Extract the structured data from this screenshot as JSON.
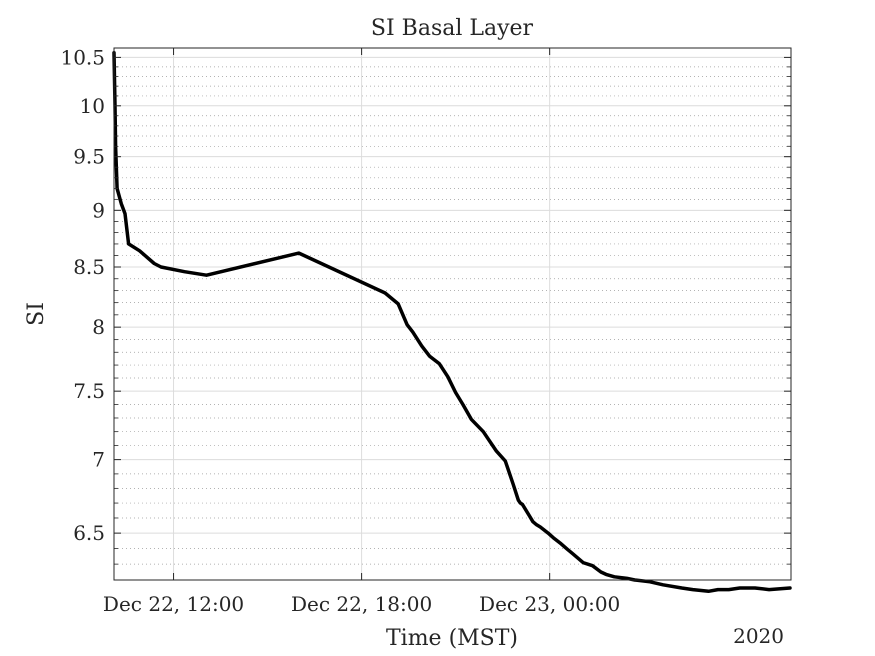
{
  "chart_data": {
    "type": "line",
    "title": "SI Basal Layer",
    "xlabel": "Time (MST)",
    "ylabel": "SI",
    "x_secondary_label": "2020",
    "scale_y": "log",
    "grid": true,
    "minor_grid": true,
    "legend": "none",
    "line_color": "#000000",
    "xlim": [
      "2020-12-22 10:06",
      "2020-12-23 07:42"
    ],
    "ylim": [
      6.2,
      10.6
    ],
    "x_ticks": [
      "2020-12-22 12:00",
      "2020-12-22 18:00",
      "2020-12-23 00:00"
    ],
    "x_tick_labels": [
      "Dec 22, 12:00",
      "Dec 22, 18:00",
      "Dec 23, 00:00"
    ],
    "y_ticks": [
      6.5,
      7,
      7.5,
      8,
      8.5,
      9,
      9.5,
      10,
      10.5
    ],
    "y_tick_labels": [
      "6.5",
      "7",
      "7.5",
      "8",
      "8.5",
      "9",
      "9.5",
      "10",
      "10.5"
    ],
    "series": [
      {
        "x": [
          "2020-12-22 10:06",
          "2020-12-22 10:08",
          "2020-12-22 10:09",
          "2020-12-22 10:12",
          "2020-12-22 10:20",
          "2020-12-22 10:27",
          "2020-12-22 10:34",
          "2020-12-22 10:55",
          "2020-12-22 11:23",
          "2020-12-22 11:36",
          "2020-12-22 12:21",
          "2020-12-22 13:03",
          "2020-12-22 16:00",
          "2020-12-22 18:45",
          "2020-12-22 19:10",
          "2020-12-22 19:27",
          "2020-12-22 19:38",
          "2020-12-22 19:55",
          "2020-12-22 20:10",
          "2020-12-22 20:29",
          "2020-12-22 20:45",
          "2020-12-22 21:00",
          "2020-12-22 21:14",
          "2020-12-22 21:30",
          "2020-12-22 21:53",
          "2020-12-22 22:18",
          "2020-12-22 22:35",
          "2020-12-22 22:50",
          "2020-12-22 23:00",
          "2020-12-22 23:04",
          "2020-12-22 23:08",
          "2020-12-22 23:22",
          "2020-12-22 23:28",
          "2020-12-22 23:35",
          "2020-12-22 23:42",
          "2020-12-22 23:57",
          "2020-12-23 00:07",
          "2020-12-23 00:22",
          "2020-12-23 00:34",
          "2020-12-23 00:43",
          "2020-12-23 01:04",
          "2020-12-23 01:22",
          "2020-12-23 01:38",
          "2020-12-23 01:48",
          "2020-12-23 02:04",
          "2020-12-23 02:28",
          "2020-12-23 02:43",
          "2020-12-23 03:10",
          "2020-12-23 03:37",
          "2020-12-23 04:13",
          "2020-12-23 04:34",
          "2020-12-23 05:04",
          "2020-12-23 05:22",
          "2020-12-23 05:43",
          "2020-12-23 06:04",
          "2020-12-23 06:33",
          "2020-12-23 07:00",
          "2020-12-23 07:40"
        ],
        "values": [
          10.55,
          10.0,
          9.6,
          9.2,
          9.06,
          8.97,
          8.7,
          8.64,
          8.53,
          8.5,
          8.46,
          8.43,
          8.62,
          8.28,
          8.19,
          8.02,
          7.96,
          7.85,
          7.77,
          7.71,
          7.61,
          7.49,
          7.4,
          7.29,
          7.2,
          7.06,
          6.99,
          6.83,
          6.72,
          6.7,
          6.69,
          6.61,
          6.575,
          6.555,
          6.54,
          6.5,
          6.47,
          6.43,
          6.395,
          6.37,
          6.31,
          6.29,
          6.25,
          6.235,
          6.22,
          6.21,
          6.2,
          6.19,
          6.17,
          6.15,
          6.14,
          6.13,
          6.14,
          6.14,
          6.15,
          6.15,
          6.14,
          6.15
        ]
      }
    ]
  }
}
